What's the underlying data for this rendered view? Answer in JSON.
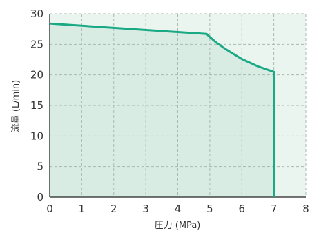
{
  "chart_data": {
    "type": "area",
    "title": "",
    "xlabel": "圧力 (MPa)",
    "ylabel": "流量 (L/min)",
    "xlim": [
      0,
      8
    ],
    "ylim": [
      0,
      30
    ],
    "x_ticks": [
      "0",
      "1",
      "2",
      "3",
      "4",
      "5",
      "6",
      "7",
      "8"
    ],
    "y_ticks": [
      "0",
      "5",
      "10",
      "15",
      "20",
      "25",
      "30"
    ],
    "grid": true,
    "legend": "none",
    "series": [
      {
        "x": [
          0,
          4.9,
          5.0,
          5.2,
          5.5,
          6.0,
          6.5,
          7.0,
          7.0
        ],
        "y": [
          28.4,
          26.7,
          26.2,
          25.3,
          24.2,
          22.6,
          21.4,
          20.5,
          0
        ]
      }
    ],
    "colors": {
      "line": "#1aa985",
      "area_under_curve": "#d8ece4",
      "plot_background": "#eaf5ef",
      "grid": "#aab8b2",
      "axis": "#222222"
    }
  }
}
